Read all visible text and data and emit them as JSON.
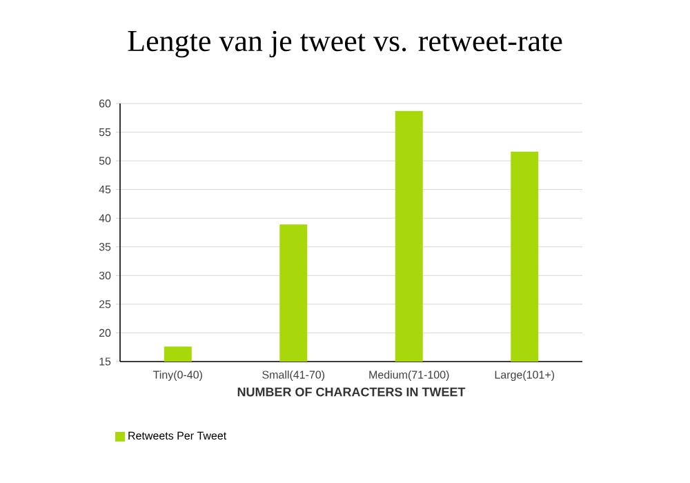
{
  "chart_data": {
    "type": "bar",
    "title": "Lengte van je tweet vs. retweet-rate",
    "xlabel": "NUMBER OF CHARACTERS IN TWEET",
    "categories": [
      "Tiny(0-40)",
      "Small(41-70)",
      "Medium(71-100)",
      "Large(101+)"
    ],
    "series": [
      {
        "name": "Retweets Per Tweet",
        "color": "#a8d80a",
        "values": [
          17.6,
          38.9,
          58.7,
          51.6
        ]
      }
    ],
    "ylim": [
      15,
      60
    ],
    "yticks": [
      15,
      20,
      25,
      30,
      35,
      40,
      45,
      50,
      55,
      60
    ],
    "grid": "y",
    "legend": "bottom left"
  }
}
